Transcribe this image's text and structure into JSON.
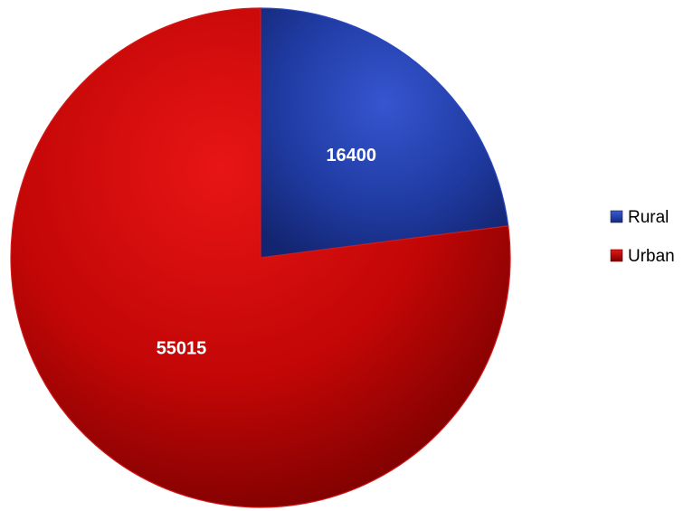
{
  "chart_data": {
    "type": "pie",
    "title": "",
    "start_angle_deg": 0,
    "direction": "clockwise",
    "slices": [
      {
        "label": "Rural",
        "value": 16400,
        "color": "#1f3aa8",
        "data_label": "16400"
      },
      {
        "label": "Urban",
        "value": 55015,
        "color": "#c00000",
        "data_label": "55015"
      }
    ],
    "legend": {
      "position": "right",
      "entries": [
        "Rural",
        "Urban"
      ]
    }
  }
}
